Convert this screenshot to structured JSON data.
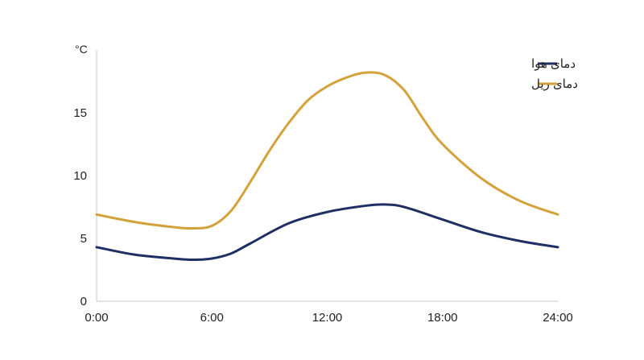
{
  "chart_data": {
    "type": "line",
    "x_unit": "hour",
    "ylabel": "°C",
    "xlim": [
      0,
      24
    ],
    "ylim": [
      0,
      20
    ],
    "x_ticks": [
      "0:00",
      "6:00",
      "12:00",
      "18:00",
      "24:00"
    ],
    "y_ticks": [
      "0",
      "5",
      "10",
      "15"
    ],
    "grid": false,
    "legend": "top-right",
    "series": [
      {
        "name": "دمای هوا",
        "color": "#1f2f63",
        "x": [
          0,
          2,
          4,
          5,
          6,
          7,
          8,
          10,
          12,
          14,
          15,
          16,
          18,
          20,
          22,
          24
        ],
        "y": [
          4.3,
          3.7,
          3.4,
          3.3,
          3.4,
          3.8,
          4.6,
          6.2,
          7.1,
          7.6,
          7.7,
          7.5,
          6.5,
          5.5,
          4.8,
          4.3
        ]
      },
      {
        "name": "دمای ریل",
        "color": "#d3a23a",
        "x": [
          0,
          2,
          4,
          5,
          6,
          7,
          8,
          9,
          10,
          11,
          12,
          13,
          14,
          15,
          16,
          17,
          18,
          20,
          22,
          24
        ],
        "y": [
          6.9,
          6.3,
          5.9,
          5.8,
          6.0,
          7.2,
          9.5,
          12.0,
          14.2,
          16.0,
          17.1,
          17.8,
          18.2,
          18.0,
          16.8,
          14.5,
          12.5,
          9.8,
          8.0,
          6.9
        ]
      }
    ]
  }
}
